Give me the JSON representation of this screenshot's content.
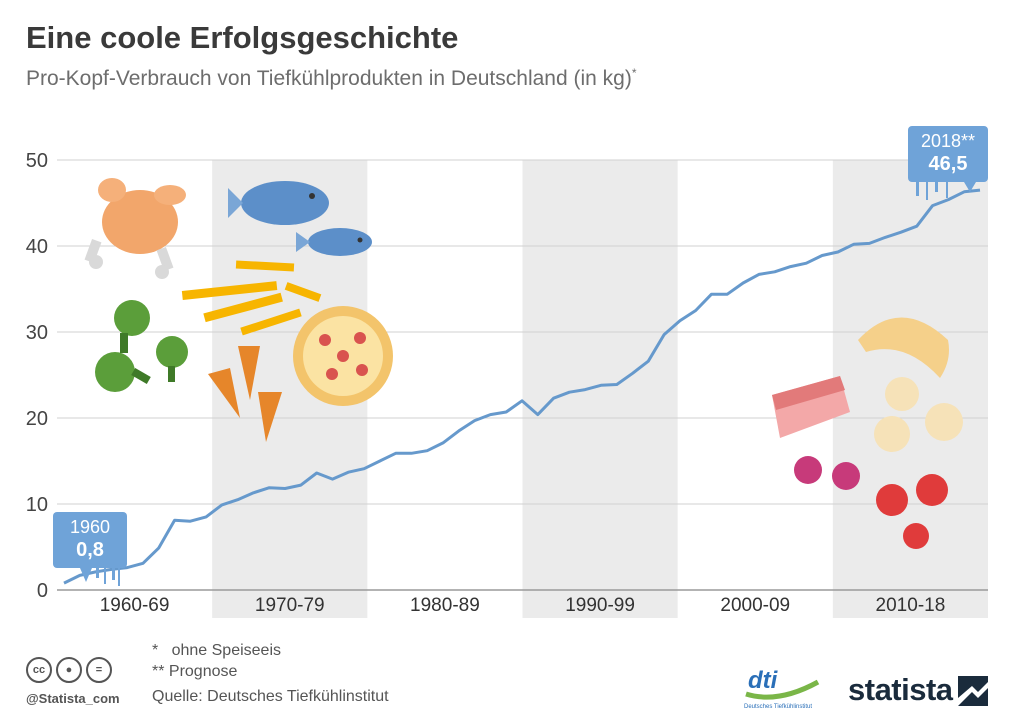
{
  "header": {
    "title": "Eine coole Erfolgsgeschichte",
    "subtitle": "Pro-Kopf-Verbrauch von Tiefkühlprodukten in Deutschland (in kg)",
    "subtitle_mark": "*"
  },
  "chart_data": {
    "type": "line",
    "title": "Eine coole Erfolgsgeschichte",
    "ylim": [
      0,
      50
    ],
    "yticks": [
      0,
      10,
      20,
      30,
      40,
      50
    ],
    "decades": [
      "1960-69",
      "1970-79",
      "1980-89",
      "1990-99",
      "2000-09",
      "2010-18"
    ],
    "series": [
      {
        "x": [
          1960,
          1961,
          1962,
          1963,
          1964,
          1965,
          1966,
          1967,
          1968,
          1969,
          1970,
          1971,
          1972,
          1973,
          1974,
          1975,
          1976,
          1977,
          1978,
          1979,
          1980,
          1981,
          1982,
          1983,
          1984,
          1985,
          1986,
          1987,
          1988,
          1989,
          1990,
          1991,
          1992,
          1993,
          1994,
          1995,
          1996,
          1997,
          1998,
          1999,
          2000,
          2001,
          2002,
          2003,
          2004,
          2005,
          2006,
          2007,
          2008,
          2009,
          2010,
          2011,
          2012,
          2013,
          2014,
          2015,
          2016,
          2017,
          2018
        ],
        "values": [
          0.8,
          1.7,
          2.1,
          2.4,
          2.6,
          3.1,
          4.9,
          8.1,
          8.0,
          8.5,
          9.9,
          10.5,
          11.3,
          11.9,
          11.8,
          12.2,
          13.6,
          12.9,
          13.7,
          14.1,
          15.0,
          15.9,
          15.9,
          16.2,
          17.1,
          18.5,
          19.7,
          20.4,
          20.7,
          22.0,
          20.4,
          22.3,
          23.0,
          23.3,
          23.8,
          23.9,
          25.2,
          26.6,
          29.7,
          31.3,
          32.5,
          34.4,
          34.4,
          35.7,
          36.7,
          37.0,
          37.6,
          38.0,
          38.9,
          39.3,
          40.2,
          40.3,
          41.0,
          41.6,
          42.3,
          44.7,
          45.4,
          46.3,
          46.5
        ]
      }
    ],
    "callouts": {
      "start": {
        "year": "1960",
        "value": "0,8"
      },
      "end": {
        "year": "2018**",
        "value": "46,5"
      }
    },
    "colors": {
      "line": "#6699cc",
      "band": "#ebebeb",
      "grid": "#d0d0d0",
      "callout": "#6fa3d8"
    }
  },
  "footer": {
    "note1_mark": "*",
    "note1_text": "ohne Speiseeis",
    "note2_mark": "**",
    "note2_text": "Prognose",
    "source": "Quelle: Deutsches Tiefkühlinstitut",
    "handle": "@Statista_com",
    "dti_text": "dti",
    "dti_sub": "Deutsches Tiefkühlinstitut",
    "statista": "statista"
  }
}
